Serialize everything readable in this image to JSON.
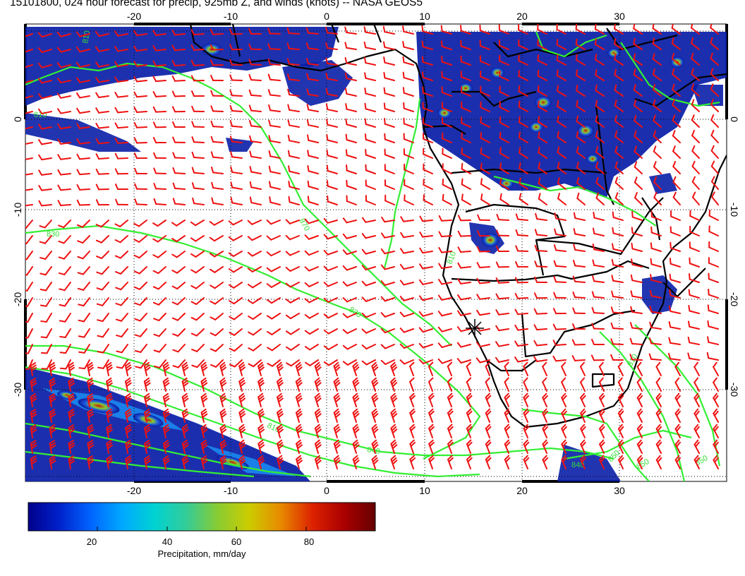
{
  "title": "15101800, 024 hour forecast for precip, 925mb Z, and winds (knots) -- NASA GEOS5",
  "map": {
    "lon_ticks": [
      "-20",
      "-10",
      "0",
      "10",
      "20",
      "30"
    ],
    "lat_ticks": [
      "0",
      "-10",
      "-20",
      "-30"
    ],
    "lon_range": [
      -31,
      41
    ],
    "lat_range": [
      -39,
      10
    ],
    "land_color": "#ffffff",
    "ocean_color": "#ffffff",
    "border_color": "#000000",
    "contour_color": "#33ee33",
    "wind_barb_color": "#ee1111",
    "grid": "dotted"
  },
  "contour_labels": [
    "810",
    "810",
    "870",
    "830",
    "830",
    "810",
    "810",
    "840",
    "840",
    "810",
    "850",
    "850",
    "850"
  ],
  "colorbar": {
    "label": "Precipitation, mm/day",
    "ticks": [
      "20",
      "40",
      "60",
      "80"
    ],
    "range": [
      0,
      100
    ],
    "colors": [
      "#00008b",
      "#0022cc",
      "#0066ff",
      "#00aaff",
      "#00d2d2",
      "#33cc99",
      "#88cc33",
      "#cccc00",
      "#e88a00",
      "#dd2200",
      "#aa0000",
      "#660000"
    ]
  }
}
